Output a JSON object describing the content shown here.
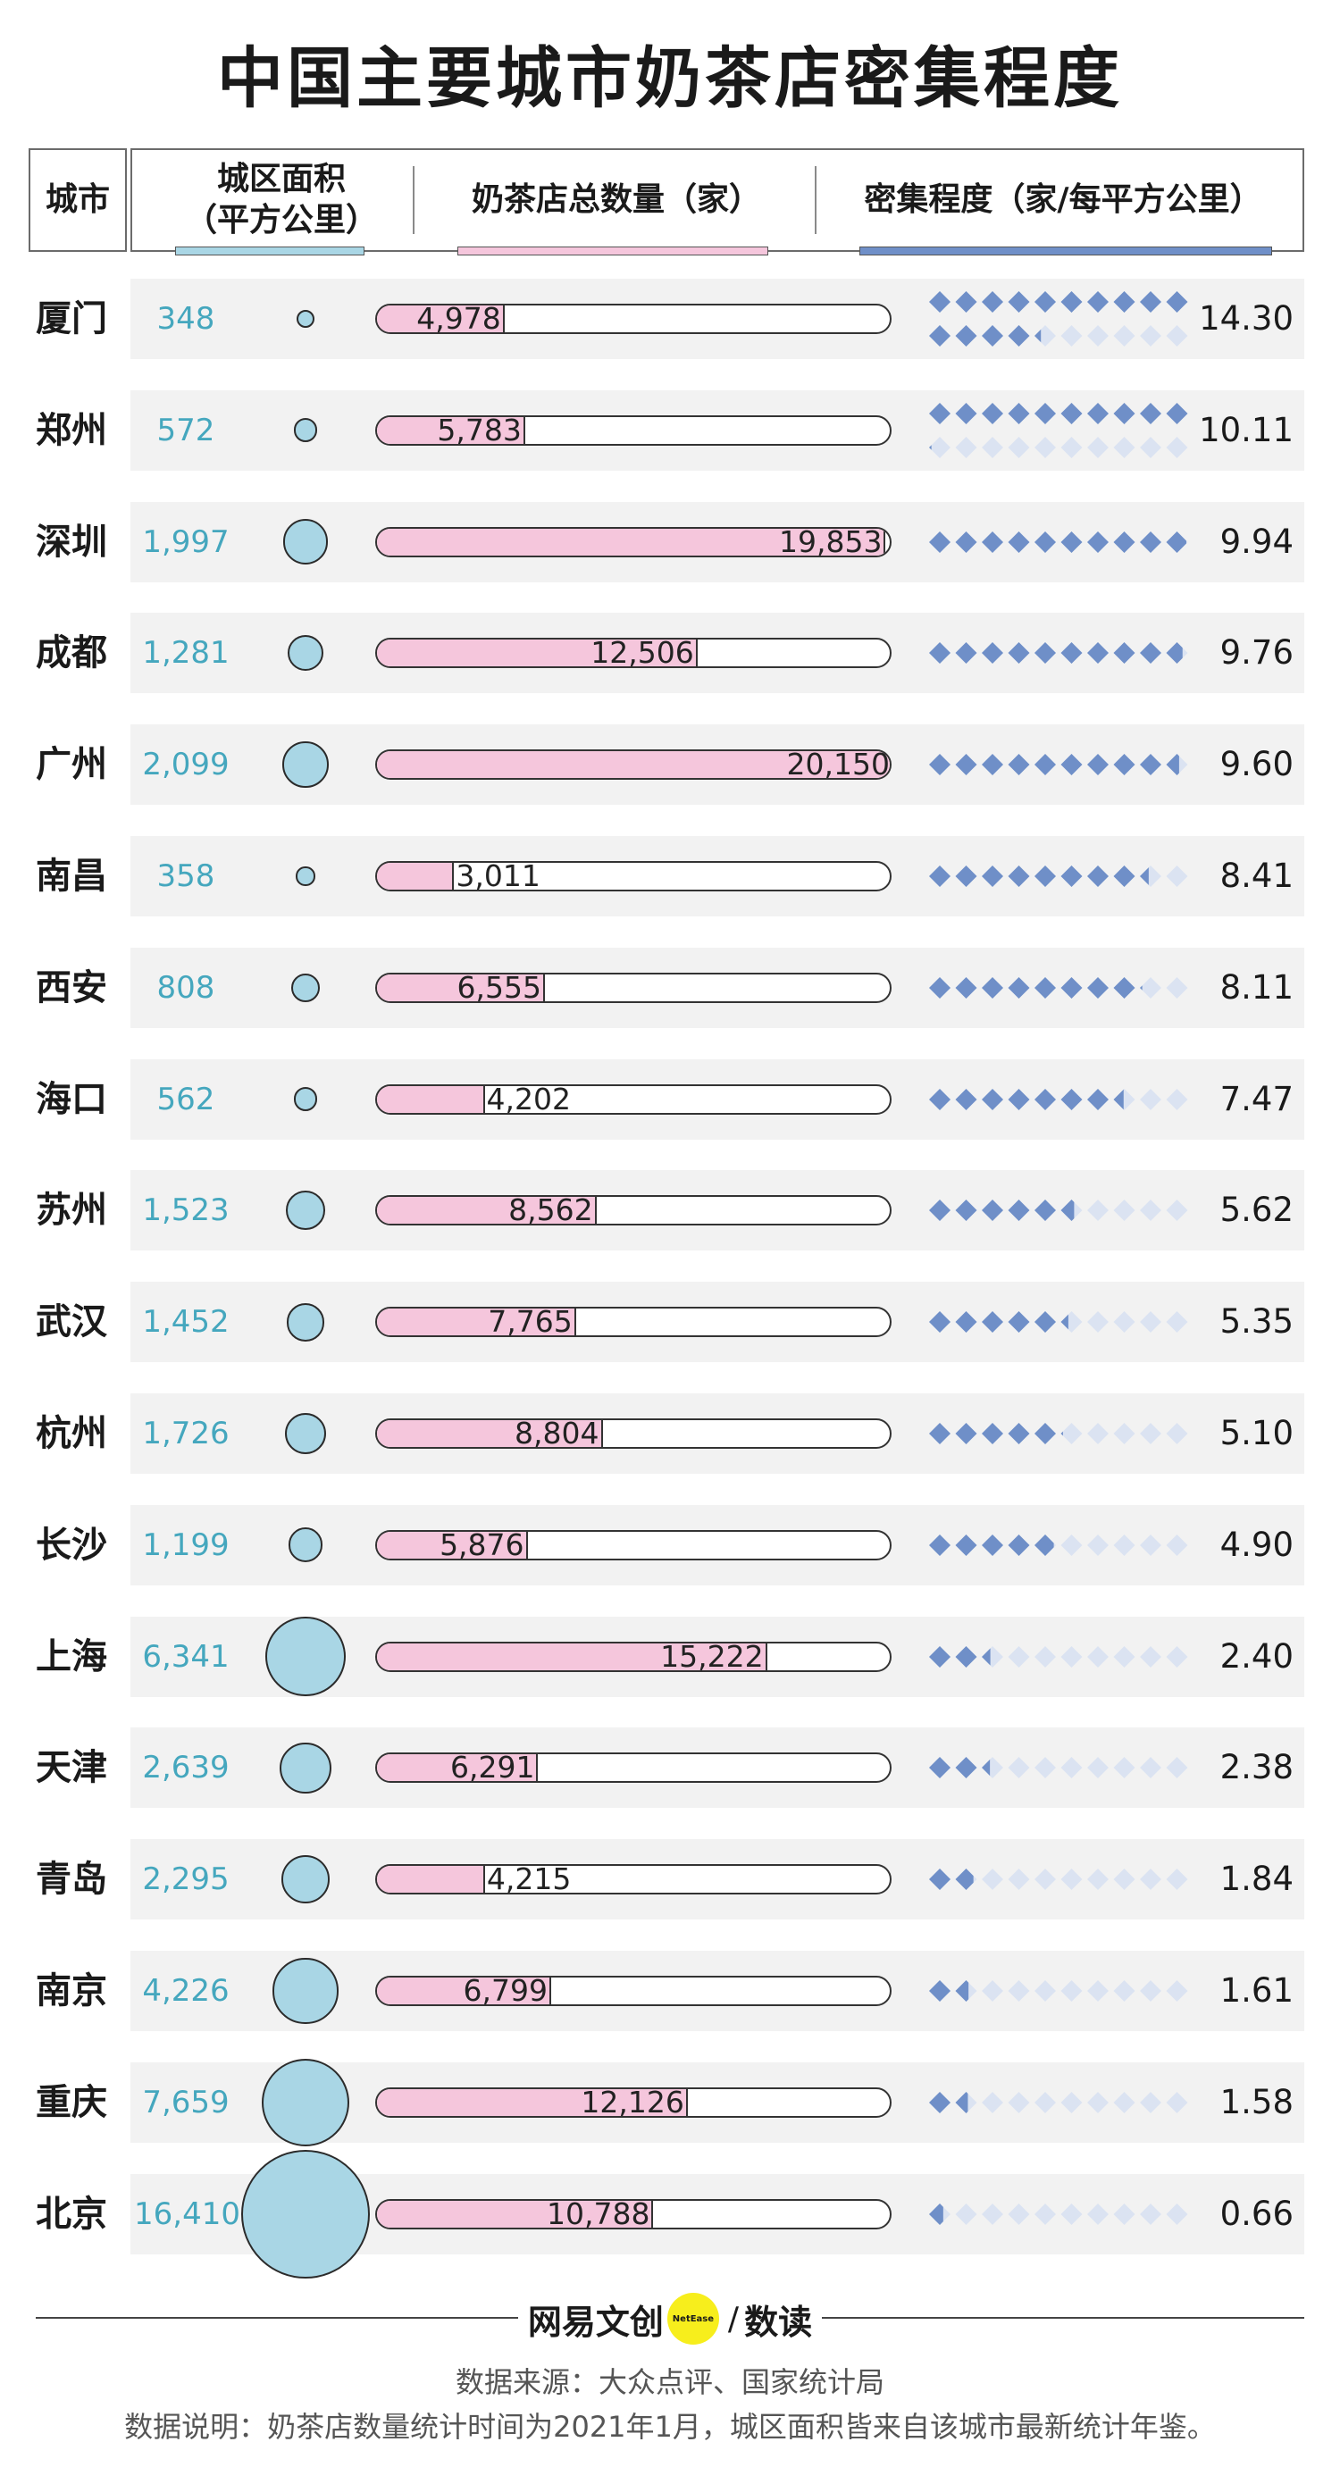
{
  "title": "中国主要城市奶茶店密集程度",
  "header": {
    "city": "城市",
    "area_line1": "城区面积",
    "area_line2": "（平方公里）",
    "count": "奶茶店总数量（家）",
    "density": "密集程度（家/每平方公里）"
  },
  "colors": {
    "area_text": "#45a7be",
    "bubble": "#a9d6e5",
    "bar": "#f5c6dc",
    "diamond": "#6f8fc8",
    "diamond_light": "#dbe3f2",
    "row_bg": "#f2f2f2"
  },
  "chart_data": {
    "type": "table",
    "title": "中国主要城市奶茶店密集程度",
    "columns": [
      "城市",
      "城区面积（平方公里）",
      "奶茶店总数量（家）",
      "密集程度（家/每平方公里）"
    ],
    "density_scale_max": 10,
    "rows": [
      {
        "city": "厦门",
        "area": 348,
        "area_label": "348",
        "count": 4978,
        "count_label": "4,978",
        "density": 14.3,
        "density_label": "14.30"
      },
      {
        "city": "郑州",
        "area": 572,
        "area_label": "572",
        "count": 5783,
        "count_label": "5,783",
        "density": 10.11,
        "density_label": "10.11"
      },
      {
        "city": "深圳",
        "area": 1997,
        "area_label": "1,997",
        "count": 19853,
        "count_label": "19,853",
        "density": 9.94,
        "density_label": "9.94"
      },
      {
        "city": "成都",
        "area": 1281,
        "area_label": "1,281",
        "count": 12506,
        "count_label": "12,506",
        "density": 9.76,
        "density_label": "9.76"
      },
      {
        "city": "广州",
        "area": 2099,
        "area_label": "2,099",
        "count": 20150,
        "count_label": "20,150",
        "density": 9.6,
        "density_label": "9.60"
      },
      {
        "city": "南昌",
        "area": 358,
        "area_label": "358",
        "count": 3011,
        "count_label": "3,011",
        "density": 8.41,
        "density_label": "8.41"
      },
      {
        "city": "西安",
        "area": 808,
        "area_label": "808",
        "count": 6555,
        "count_label": "6,555",
        "density": 8.11,
        "density_label": "8.11"
      },
      {
        "city": "海口",
        "area": 562,
        "area_label": "562",
        "count": 4202,
        "count_label": "4,202",
        "density": 7.47,
        "density_label": "7.47"
      },
      {
        "city": "苏州",
        "area": 1523,
        "area_label": "1,523",
        "count": 8562,
        "count_label": "8,562",
        "density": 5.62,
        "density_label": "5.62"
      },
      {
        "city": "武汉",
        "area": 1452,
        "area_label": "1,452",
        "count": 7765,
        "count_label": "7,765",
        "density": 5.35,
        "density_label": "5.35"
      },
      {
        "city": "杭州",
        "area": 1726,
        "area_label": "1,726",
        "count": 8804,
        "count_label": "8,804",
        "density": 5.1,
        "density_label": "5.10"
      },
      {
        "city": "长沙",
        "area": 1199,
        "area_label": "1,199",
        "count": 5876,
        "count_label": "5,876",
        "density": 4.9,
        "density_label": "4.90"
      },
      {
        "city": "上海",
        "area": 6341,
        "area_label": "6,341",
        "count": 15222,
        "count_label": "15,222",
        "density": 2.4,
        "density_label": "2.40"
      },
      {
        "city": "天津",
        "area": 2639,
        "area_label": "2,639",
        "count": 6291,
        "count_label": "6,291",
        "density": 2.38,
        "density_label": "2.38"
      },
      {
        "city": "青岛",
        "area": 2295,
        "area_label": "2,295",
        "count": 4215,
        "count_label": "4,215",
        "density": 1.84,
        "density_label": "1.84"
      },
      {
        "city": "南京",
        "area": 4226,
        "area_label": "4,226",
        "count": 6799,
        "count_label": "6,799",
        "density": 1.61,
        "density_label": "1.61"
      },
      {
        "city": "重庆",
        "area": 7659,
        "area_label": "7,659",
        "count": 12126,
        "count_label": "12,126",
        "density": 1.58,
        "density_label": "1.58"
      },
      {
        "city": "北京",
        "area": 16410,
        "area_label": "16,410",
        "count": 10788,
        "count_label": "10,788",
        "density": 0.66,
        "density_label": "0.66"
      }
    ]
  },
  "footer": {
    "brand_name": "网易文创",
    "brand_logo_text": "NetEase",
    "brand_sub": "数读",
    "source": "数据来源：大众点评、国家统计局",
    "note": "数据说明：奶茶店数量统计时间为2021年1月，城区面积皆来自该城市最新统计年鉴。"
  }
}
